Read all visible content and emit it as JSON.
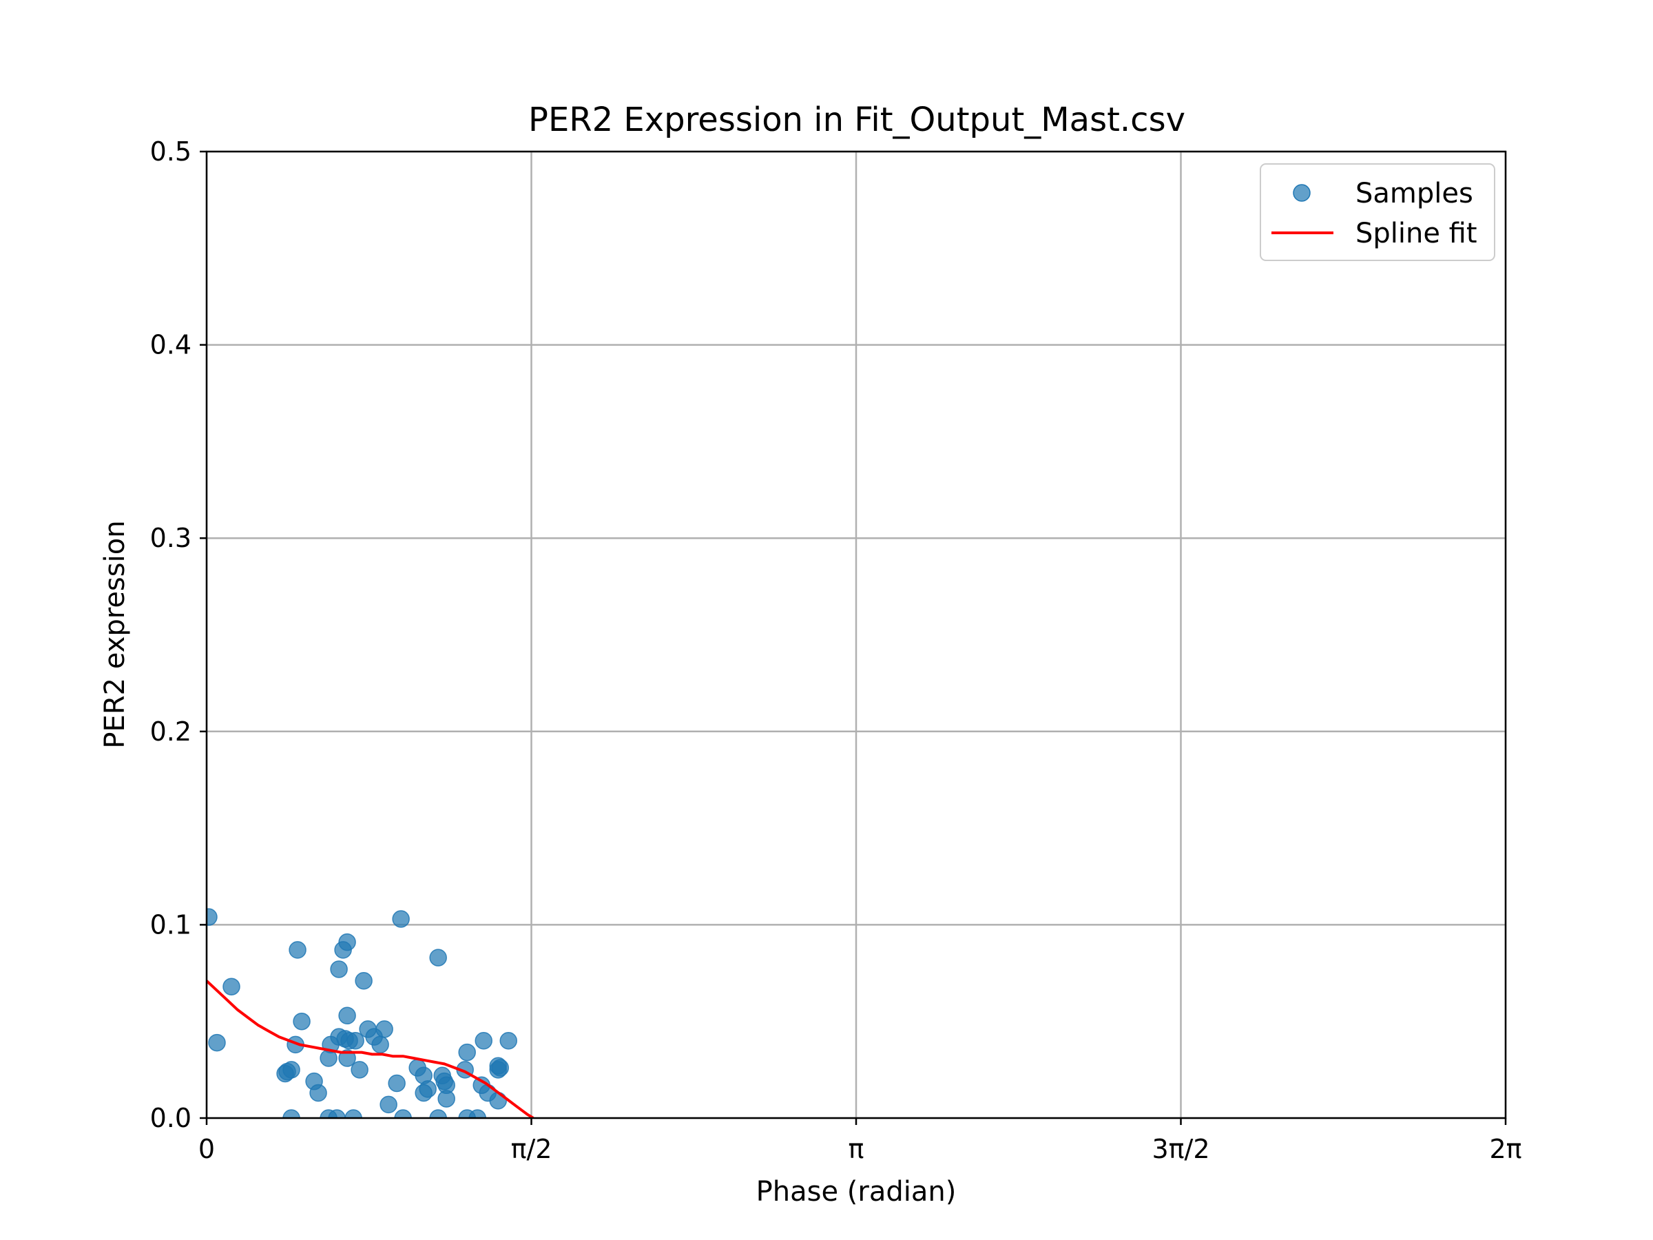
{
  "chart_data": {
    "type": "scatter",
    "title": "PER2 Expression in Fit_Output_Mast.csv",
    "xlabel": "Phase (radian)",
    "ylabel": "PER2 expression",
    "xlim": [
      0,
      6.2832
    ],
    "ylim": [
      0,
      0.5
    ],
    "x_ticks": [
      {
        "value": 0,
        "label": "0"
      },
      {
        "value": 1.5708,
        "label": "π/2"
      },
      {
        "value": 3.1416,
        "label": "π"
      },
      {
        "value": 4.7124,
        "label": "3π/2"
      },
      {
        "value": 6.2832,
        "label": "2π"
      }
    ],
    "y_ticks": [
      {
        "value": 0.0,
        "label": "0.0"
      },
      {
        "value": 0.1,
        "label": "0.1"
      },
      {
        "value": 0.2,
        "label": "0.2"
      },
      {
        "value": 0.3,
        "label": "0.3"
      },
      {
        "value": 0.4,
        "label": "0.4"
      },
      {
        "value": 0.5,
        "label": "0.5"
      }
    ],
    "grid": true,
    "legend_position": "top-right",
    "series": [
      {
        "name": "Samples",
        "kind": "scatter",
        "color": "#1f77b4",
        "points": [
          [
            0.01,
            0.104
          ],
          [
            0.05,
            0.039
          ],
          [
            0.12,
            0.068
          ],
          [
            0.38,
            0.023
          ],
          [
            0.39,
            0.024
          ],
          [
            0.41,
            0.025
          ],
          [
            0.41,
            0.0
          ],
          [
            0.43,
            0.038
          ],
          [
            0.44,
            0.087
          ],
          [
            0.46,
            0.05
          ],
          [
            0.52,
            0.019
          ],
          [
            0.54,
            0.013
          ],
          [
            0.59,
            0.0
          ],
          [
            0.59,
            0.031
          ],
          [
            0.6,
            0.038
          ],
          [
            0.63,
            0.0
          ],
          [
            0.64,
            0.042
          ],
          [
            0.64,
            0.077
          ],
          [
            0.66,
            0.087
          ],
          [
            0.67,
            0.041
          ],
          [
            0.68,
            0.091
          ],
          [
            0.68,
            0.031
          ],
          [
            0.68,
            0.053
          ],
          [
            0.69,
            0.04
          ],
          [
            0.71,
            0.0
          ],
          [
            0.72,
            0.04
          ],
          [
            0.74,
            0.025
          ],
          [
            0.76,
            0.071
          ],
          [
            0.78,
            0.046
          ],
          [
            0.81,
            0.042
          ],
          [
            0.84,
            0.038
          ],
          [
            0.86,
            0.046
          ],
          [
            0.88,
            0.007
          ],
          [
            0.92,
            0.018
          ],
          [
            0.94,
            0.103
          ],
          [
            0.95,
            0.0
          ],
          [
            1.02,
            0.026
          ],
          [
            1.05,
            0.022
          ],
          [
            1.05,
            0.013
          ],
          [
            1.07,
            0.015
          ],
          [
            1.12,
            0.083
          ],
          [
            1.12,
            0.0
          ],
          [
            1.14,
            0.022
          ],
          [
            1.15,
            0.019
          ],
          [
            1.16,
            0.017
          ],
          [
            1.16,
            0.01
          ],
          [
            1.25,
            0.025
          ],
          [
            1.26,
            0.034
          ],
          [
            1.26,
            0.0
          ],
          [
            1.31,
            0.0
          ],
          [
            1.33,
            0.017
          ],
          [
            1.34,
            0.04
          ],
          [
            1.36,
            0.013
          ],
          [
            1.41,
            0.025
          ],
          [
            1.41,
            0.027
          ],
          [
            1.41,
            0.009
          ],
          [
            1.42,
            0.026
          ],
          [
            1.46,
            0.04
          ]
        ]
      },
      {
        "name": "Spline fit",
        "kind": "line",
        "color": "#ff0000",
        "points": [
          [
            0.0,
            0.071
          ],
          [
            0.05,
            0.066
          ],
          [
            0.1,
            0.061
          ],
          [
            0.15,
            0.056
          ],
          [
            0.2,
            0.052
          ],
          [
            0.25,
            0.048
          ],
          [
            0.3,
            0.045
          ],
          [
            0.35,
            0.042
          ],
          [
            0.4,
            0.04
          ],
          [
            0.45,
            0.038
          ],
          [
            0.5,
            0.037
          ],
          [
            0.55,
            0.036
          ],
          [
            0.6,
            0.035
          ],
          [
            0.65,
            0.034
          ],
          [
            0.7,
            0.034
          ],
          [
            0.75,
            0.034
          ],
          [
            0.8,
            0.033
          ],
          [
            0.85,
            0.033
          ],
          [
            0.9,
            0.032
          ],
          [
            0.95,
            0.032
          ],
          [
            1.0,
            0.031
          ],
          [
            1.05,
            0.03
          ],
          [
            1.1,
            0.029
          ],
          [
            1.15,
            0.028
          ],
          [
            1.2,
            0.026
          ],
          [
            1.25,
            0.024
          ],
          [
            1.3,
            0.021
          ],
          [
            1.35,
            0.018
          ],
          [
            1.4,
            0.014
          ],
          [
            1.45,
            0.01
          ],
          [
            1.5,
            0.006
          ],
          [
            1.55,
            0.002
          ],
          [
            1.58,
            0.0
          ]
        ]
      }
    ]
  }
}
